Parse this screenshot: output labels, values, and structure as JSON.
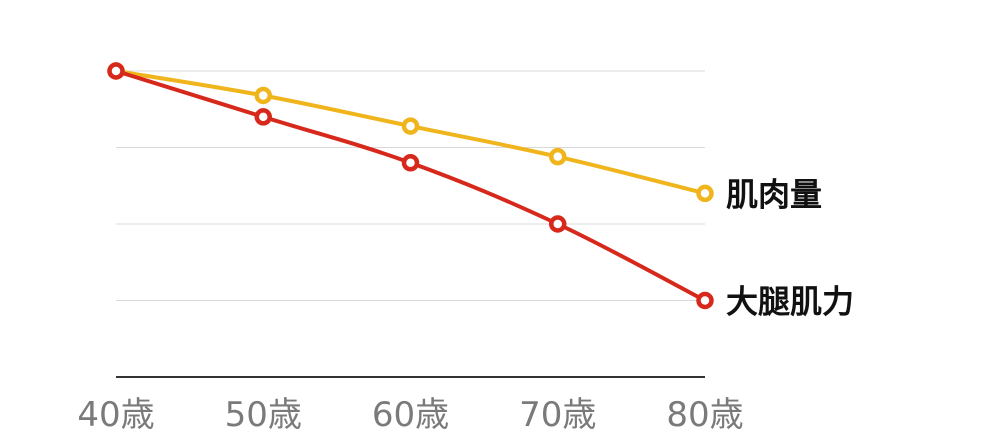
{
  "chart_data": {
    "type": "line",
    "title": "",
    "xlabel": "",
    "ylabel": "",
    "x": [
      "40歳",
      "50歳",
      "60歳",
      "70歳",
      "80歳"
    ],
    "ylim": [
      0,
      100
    ],
    "grid": true,
    "y_tick_labels": false,
    "series": [
      {
        "name": "肌肉量",
        "values": [
          100,
          92,
          82,
          72,
          60
        ],
        "color": "#f0b51c"
      },
      {
        "name": "大腿肌力",
        "values": [
          100,
          85,
          70,
          50,
          25
        ],
        "color": "#d7281c"
      }
    ]
  }
}
